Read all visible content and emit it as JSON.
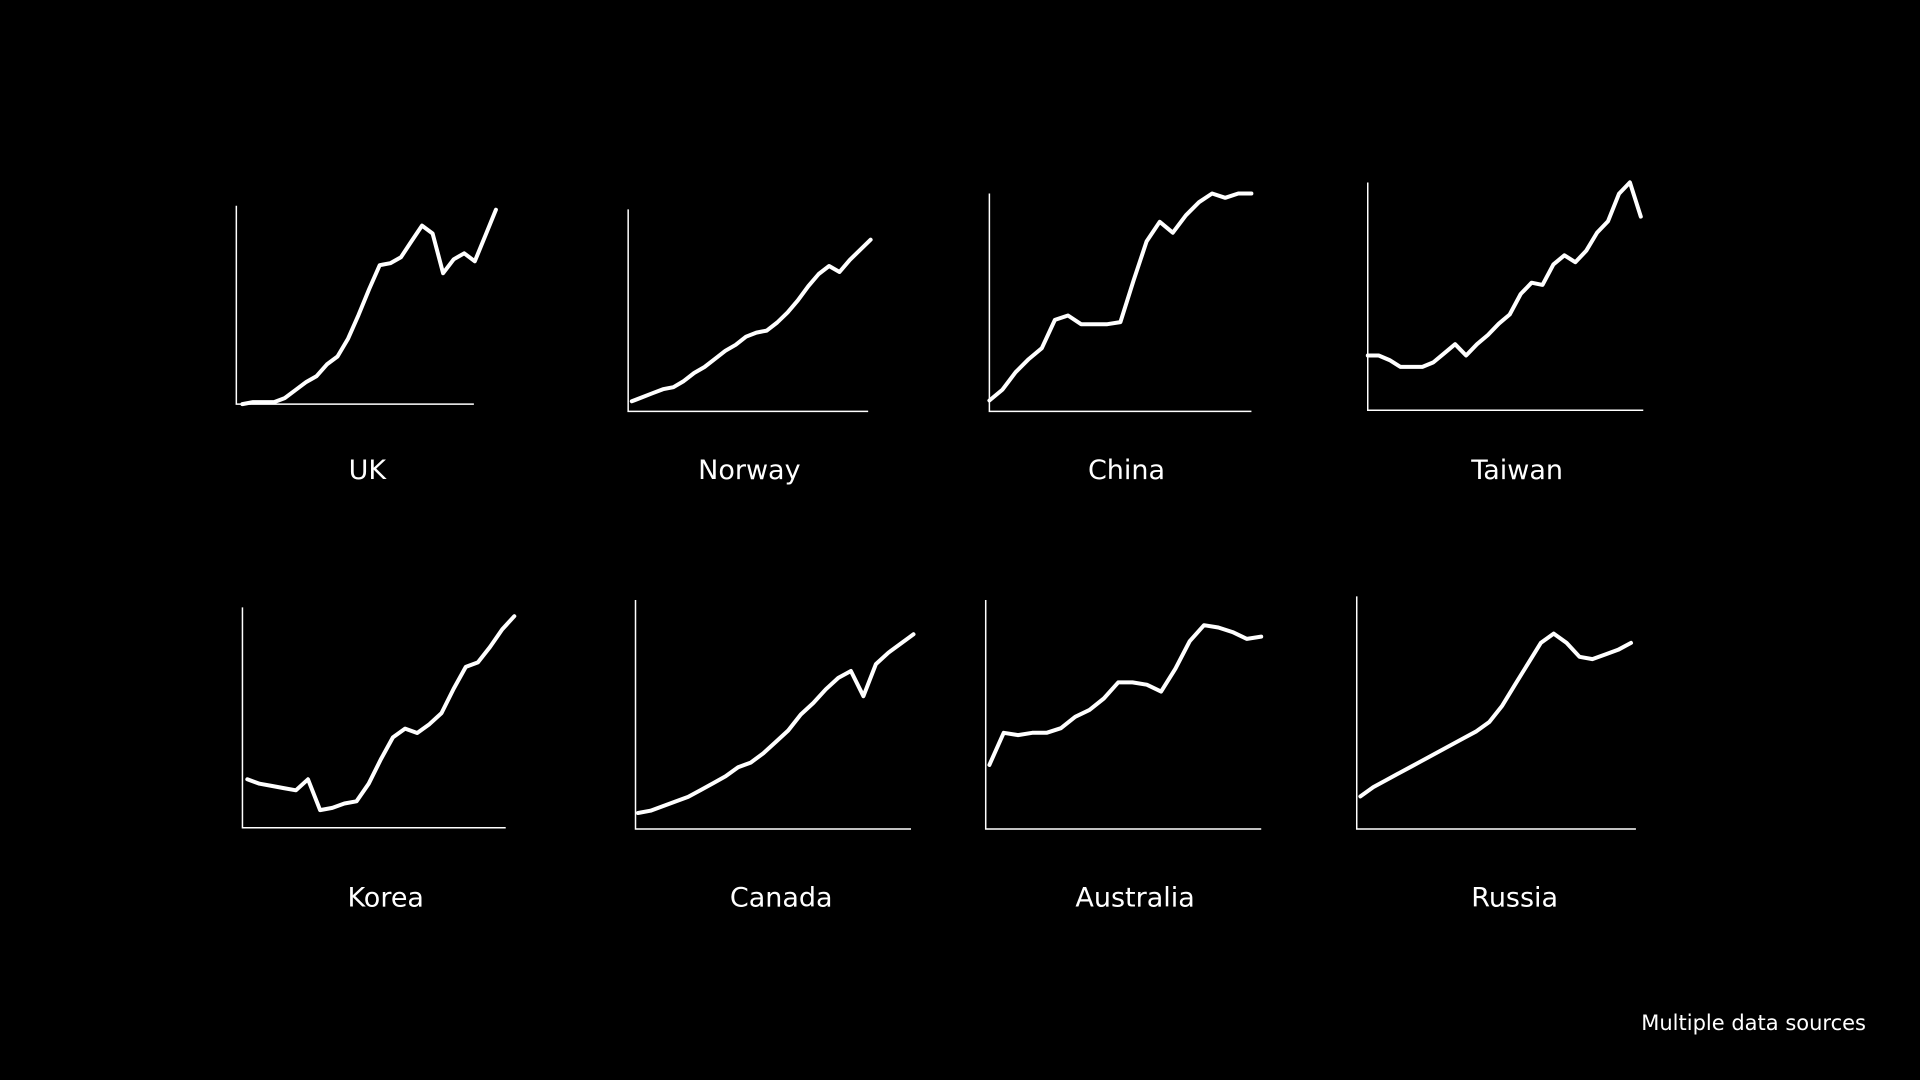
{
  "chart_data": [
    {
      "type": "line",
      "title": "UK",
      "color": "#ffffff",
      "ylim": [
        0,
        100
      ],
      "values": [
        0,
        1,
        1,
        1,
        3,
        7,
        11,
        14,
        20,
        24,
        33,
        45,
        58,
        70,
        71,
        74,
        82,
        90,
        86,
        66,
        73,
        76,
        72,
        85,
        98
      ]
    },
    {
      "type": "line",
      "title": "Norway",
      "color": "#ffffff",
      "ylim": [
        0,
        100
      ],
      "values": [
        5,
        7,
        9,
        11,
        12,
        15,
        19,
        22,
        26,
        30,
        33,
        37,
        39,
        40,
        44,
        49,
        55,
        62,
        68,
        72,
        69,
        75,
        80,
        85
      ]
    },
    {
      "type": "line",
      "title": "China",
      "color": "#ffffff",
      "ylim": [
        0,
        100
      ],
      "values": [
        5,
        10,
        18,
        24,
        29,
        42,
        44,
        40,
        40,
        40,
        41,
        60,
        78,
        87,
        82,
        90,
        96,
        100,
        98,
        100,
        100
      ]
    },
    {
      "type": "line",
      "title": "Taiwan",
      "color": "#ffffff",
      "ylim": [
        0,
        100
      ],
      "values": [
        24,
        24,
        22,
        19,
        19,
        19,
        21,
        25,
        29,
        24,
        29,
        33,
        38,
        42,
        51,
        56,
        55,
        64,
        68,
        65,
        70,
        78,
        83,
        95,
        100,
        85
      ]
    },
    {
      "type": "line",
      "title": "Korea",
      "color": "#ffffff",
      "ylim": [
        0,
        100
      ],
      "values": [
        22,
        20,
        19,
        18,
        17,
        22,
        8,
        9,
        11,
        12,
        20,
        31,
        41,
        45,
        43,
        47,
        52,
        63,
        73,
        75,
        82,
        90,
        96
      ]
    },
    {
      "type": "line",
      "title": "Canada",
      "color": "#ffffff",
      "ylim": [
        0,
        100
      ],
      "values": [
        7,
        8,
        10,
        12,
        14,
        17,
        20,
        23,
        27,
        29,
        33,
        38,
        43,
        50,
        55,
        61,
        66,
        69,
        58,
        72,
        77,
        81,
        85
      ]
    },
    {
      "type": "line",
      "title": "Australia",
      "color": "#ffffff",
      "ylim": [
        0,
        100
      ],
      "values": [
        28,
        42,
        41,
        42,
        42,
        44,
        49,
        52,
        57,
        64,
        64,
        63,
        60,
        70,
        82,
        89,
        88,
        86,
        83,
        84
      ]
    },
    {
      "type": "line",
      "title": "Russia",
      "color": "#ffffff",
      "ylim": [
        0,
        100
      ],
      "values": [
        14,
        18,
        21,
        24,
        27,
        30,
        33,
        36,
        39,
        42,
        46,
        53,
        62,
        71,
        80,
        84,
        80,
        74,
        73,
        75,
        77,
        80
      ]
    }
  ],
  "source": "Multiple data sources"
}
